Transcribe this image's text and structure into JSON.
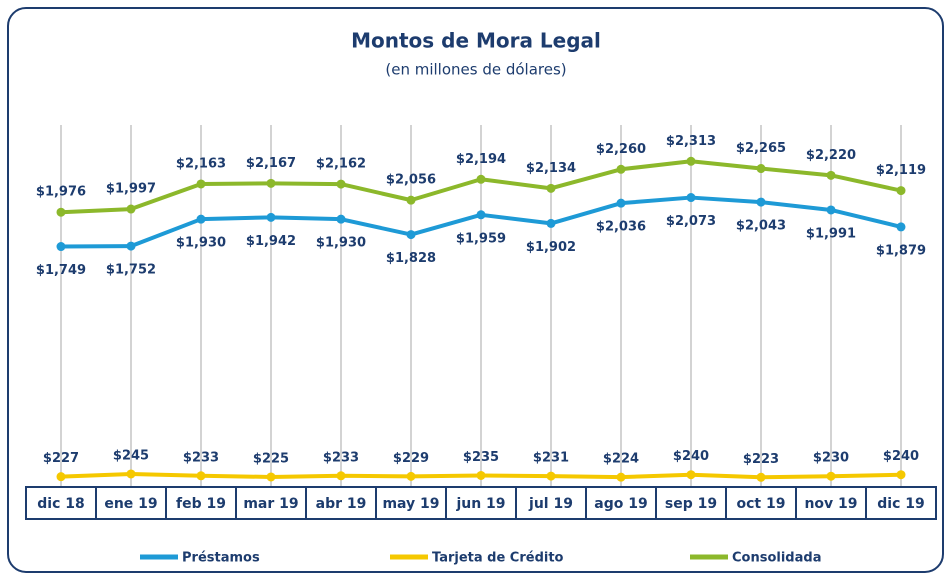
{
  "chart_data": {
    "type": "line",
    "title": "Montos de Mora Legal",
    "subtitle": "(en millones de dólares)",
    "categories": [
      "dic 18",
      "ene 19",
      "feb 19",
      "mar 19",
      "abr 19",
      "may 19",
      "jun 19",
      "jul 19",
      "ago 19",
      "sep 19",
      "oct 19",
      "nov 19",
      "dic 19"
    ],
    "ylim": [
      0,
      2500
    ],
    "series": [
      {
        "name": "Préstamos",
        "color": "#1e9ad6",
        "values": [
          1749,
          1752,
          1930,
          1942,
          1930,
          1828,
          1959,
          1902,
          2036,
          2073,
          2043,
          1991,
          1879
        ],
        "value_labels": [
          "$1,749",
          "$1,752",
          "$1,930",
          "$1,942",
          "$1,930",
          "$1,828",
          "$1,959",
          "$1,902",
          "$2,036",
          "$2,073",
          "$2,043",
          "$1,991",
          "$1,879"
        ]
      },
      {
        "name": "Tarjeta de Crédito",
        "color": "#f5c800",
        "values": [
          227,
          245,
          233,
          225,
          233,
          229,
          235,
          231,
          224,
          240,
          223,
          230,
          240
        ],
        "value_labels": [
          "$227",
          "$245",
          "$233",
          "$225",
          "$233",
          "$229",
          "$235",
          "$231",
          "$224",
          "$240",
          "$223",
          "$230",
          "$240"
        ]
      },
      {
        "name": "Consolidada",
        "color": "#8cb82b",
        "values": [
          1976,
          1997,
          2163,
          2167,
          2162,
          2056,
          2194,
          2134,
          2260,
          2313,
          2265,
          2220,
          2119
        ],
        "value_labels": [
          "$1,976",
          "$1,997",
          "$2,163",
          "$2,167",
          "$2,162",
          "$2,056",
          "$2,194",
          "$2,134",
          "$2,260",
          "$2,313",
          "$2,265",
          "$2,220",
          "$2,119"
        ]
      }
    ]
  }
}
